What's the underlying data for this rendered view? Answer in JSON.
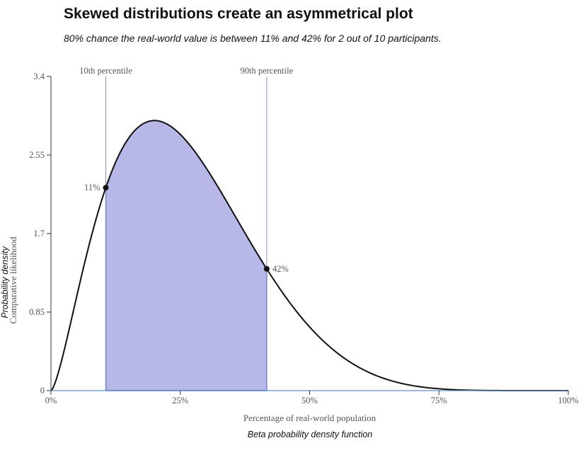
{
  "title": "Skewed distributions create an asymmetrical plot",
  "subtitle": "80% chance the real-world value is between 11% and 42% for 2 out of 10 participants.",
  "footer": "Beta probability density function",
  "colors": {
    "fill": "#b7b7e8",
    "area_outline": "#3f5aa8",
    "curve": "#111111",
    "percentile_line": "#8b8fc4",
    "axis": "#5d8fc9",
    "text": "#555555"
  },
  "chart_data": {
    "type": "area",
    "distribution": "beta",
    "beta_params": {
      "alpha": 2.5,
      "beta": 7.0
    },
    "xlabel": "Percentage of real-world population",
    "ylabel_primary": "Probability density",
    "ylabel_secondary": "Comparative likelihood",
    "xlim": [
      0,
      100
    ],
    "ylim": [
      0,
      3.4
    ],
    "x_ticks": [
      {
        "value": 0,
        "label": "0%"
      },
      {
        "value": 25,
        "label": "25%"
      },
      {
        "value": 50,
        "label": "50%"
      },
      {
        "value": 75,
        "label": "75%"
      },
      {
        "value": 100,
        "label": "100%"
      }
    ],
    "y_ticks": [
      {
        "value": 0,
        "label": "0"
      },
      {
        "value": 0.85,
        "label": "0.85"
      },
      {
        "value": 1.7,
        "label": "1.7"
      },
      {
        "value": 2.55,
        "label": "2.55"
      },
      {
        "value": 3.4,
        "label": "3.4"
      }
    ],
    "percentiles": [
      {
        "name": "10th percentile",
        "x": 10.6,
        "y": 2.26,
        "point_label": "11%"
      },
      {
        "name": "90th percentile",
        "x": 41.7,
        "y": 1.17,
        "point_label": "42%"
      }
    ],
    "shaded_region": [
      10.6,
      41.7
    ],
    "grid": false
  }
}
